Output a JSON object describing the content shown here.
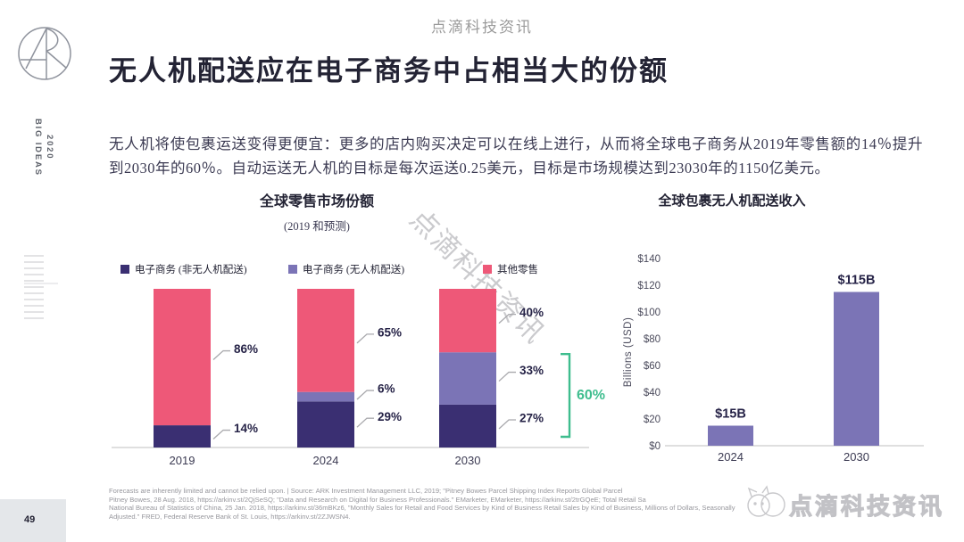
{
  "watermarks": {
    "top": "点滴科技资讯",
    "diagonal": "点滴科技资讯",
    "bottom": "点滴科技资讯"
  },
  "sidebar": {
    "vertical_name": "BIG IDEAS",
    "vertical_year": "2020",
    "page_number": "49"
  },
  "header": {
    "title": "无人机配送应在电子商务中占相当大的份额"
  },
  "intro": {
    "text": "无人机将使包裹运送变得更便宜：更多的店内购买决定可以在线上进行，从而将全球电子商务从2019年零售额的14％提升到2030年的60％。自动运送无人机的目标是每次运送0.25美元，目标是市场规模达到23030年的1150亿美元。"
  },
  "chart_data": [
    {
      "type": "bar",
      "stacked": true,
      "title": "全球零售市场份额",
      "subtitle": "(2019 和预测)",
      "categories": [
        "2019",
        "2024",
        "2030"
      ],
      "series": [
        {
          "name": "电子商务 (非无人机配送)",
          "color": "#3a2f72",
          "values": [
            14,
            29,
            27
          ]
        },
        {
          "name": "电子商务 (无人机配送)",
          "color": "#7b74b6",
          "values": [
            0,
            6,
            33
          ]
        },
        {
          "name": "其他零售",
          "color": "#ee5878",
          "values": [
            86,
            65,
            40
          ]
        }
      ],
      "unit": "%",
      "ylim": [
        0,
        100
      ],
      "grid": false,
      "legend_position": "top",
      "annotation": {
        "text": "60%",
        "color": "#3ebd8e",
        "category": "2030",
        "covers_percent": 60
      }
    },
    {
      "type": "bar",
      "title": "全球包裹无人机配送收入",
      "ylabel": "Billions (USD)",
      "categories": [
        "2024",
        "2030"
      ],
      "values": [
        15,
        115
      ],
      "bar_labels": [
        "$15B",
        "$115B"
      ],
      "bar_color": "#7b74b6",
      "yticks": [
        "$0",
        "$20",
        "$40",
        "$60",
        "$80",
        "$100",
        "$120",
        "$140"
      ],
      "ytick_step": 20,
      "ylim": [
        0,
        140
      ],
      "grid": false
    }
  ],
  "style": {
    "label_color": "#262347",
    "axis_color": "#cccccc",
    "callout_color": "#a9a9ad",
    "tick_color": "#4b4b5c",
    "cat_color": "#3b3a52"
  },
  "footer": {
    "lines": [
      "Forecasts are inherently limited and cannot be relied upon.  |   Source: ARK Investment Management LLC, 2019; \"Pitney Bowes Parcel Shipping Index Reports Global Parcel",
      "Pitney Bowes, 28 Aug. 2018, https://arkinv.st/2QjSeSQ; \"Data and Research on Digital for Business Professionals.\" EMarketer, EMarketer, https://arkinv.st/2trGQeE; Total Retail Sa",
      "National Bureau of Statistics of China, 25 Jan. 2018, https://arkinv.st/36mBKz6, \"Monthly Sales for Retail and Food Services by Kind of Business Retail Sales by Kind of Business, Millions of Dollars, Seasonally",
      "Adjusted.\" FRED, Federal Reserve Bank of St. Louis, https://arkinv.st/2ZJWSN4."
    ]
  }
}
